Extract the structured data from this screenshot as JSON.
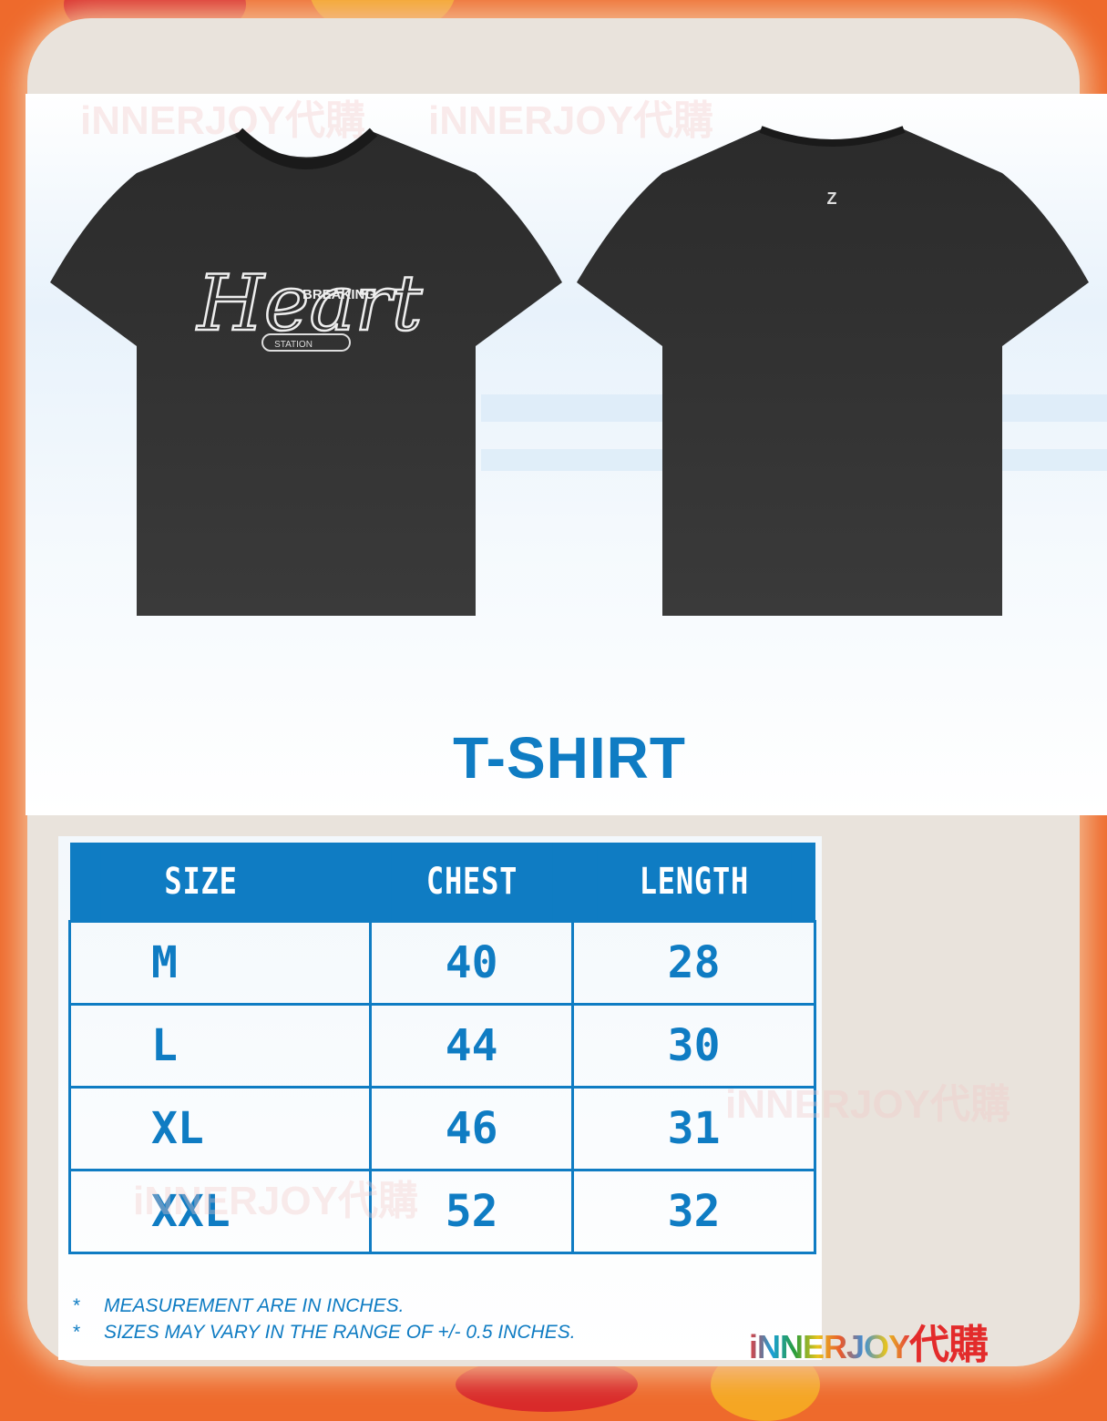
{
  "product": {
    "front_print": {
      "script": "Heart",
      "word": "BREAKING",
      "badge": "STATION"
    },
    "title": "T-SHIRT"
  },
  "size_table": {
    "headers": [
      "SIZE",
      "CHEST",
      "LENGTH"
    ],
    "rows": [
      [
        "M",
        "40",
        "28"
      ],
      [
        "L",
        "44",
        "30"
      ],
      [
        "XL",
        "46",
        "31"
      ],
      [
        "XXL",
        "52",
        "32"
      ]
    ]
  },
  "notes": [
    {
      "bullet": "*",
      "text": "MEASUREMENT ARE IN INCHES."
    },
    {
      "bullet": "*",
      "text": "SIZES MAY VARY IN THE RANGE OF +/- 0.5 INCHES."
    }
  ],
  "watermark": "iNNERJOY代購",
  "logo": {
    "latin": "iNNERJOY",
    "chinese": "代購"
  },
  "colors": {
    "accent": "#0f7cc3",
    "border": "#ee6a2c",
    "shirt": "#2e2e2e"
  }
}
